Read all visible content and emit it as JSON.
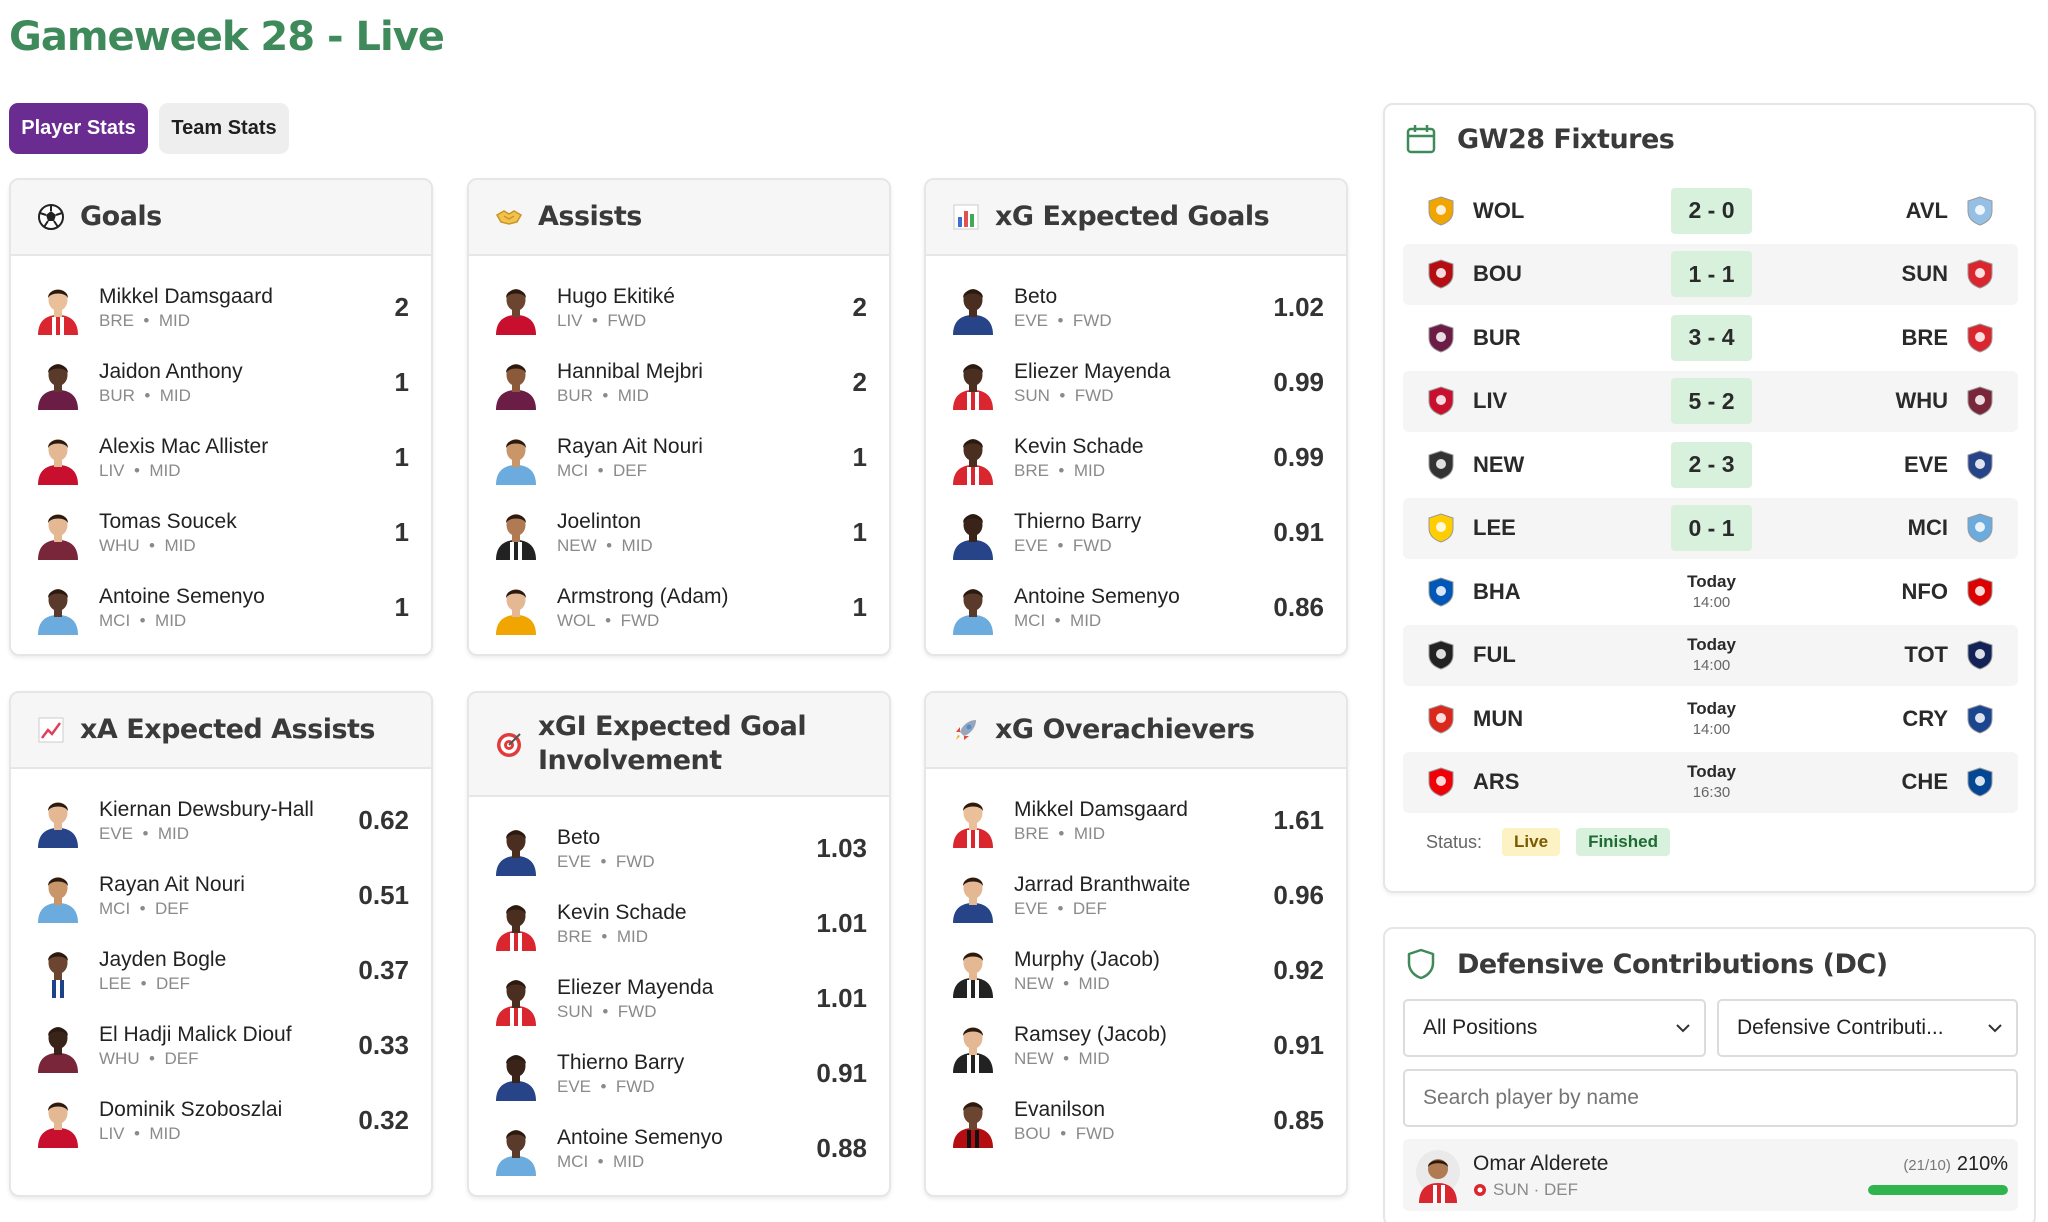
{
  "page": {
    "title": "Gameweek 28 - Live"
  },
  "tabs": [
    {
      "label": "Player Stats",
      "active": true
    },
    {
      "label": "Team Stats",
      "active": false
    }
  ],
  "cards": [
    {
      "title": "Goals",
      "icon": "soccer-ball-icon",
      "rows": [
        {
          "name": "Mikkel Damsgaard",
          "team": "BRE",
          "pos": "MID",
          "value": "2",
          "kit": "#d9262f",
          "kit2": "#ffffff",
          "skin": "#e9c09a"
        },
        {
          "name": "Jaidon Anthony",
          "team": "BUR",
          "pos": "MID",
          "value": "1",
          "kit": "#6c1d45",
          "kit2": "#6c1d45",
          "skin": "#5a3a2a"
        },
        {
          "name": "Alexis Mac Allister",
          "team": "LIV",
          "pos": "MID",
          "value": "1",
          "kit": "#c8102e",
          "kit2": "#c8102e",
          "skin": "#e5b894"
        },
        {
          "name": "Tomas Soucek",
          "team": "WHU",
          "pos": "MID",
          "value": "1",
          "kit": "#7a263a",
          "kit2": "#7a263a",
          "skin": "#e5b894"
        },
        {
          "name": "Antoine Semenyo",
          "team": "MCI",
          "pos": "MID",
          "value": "1",
          "kit": "#6cabdd",
          "kit2": "#6cabdd",
          "skin": "#5a3a2a"
        }
      ]
    },
    {
      "title": "Assists",
      "icon": "handshake-icon",
      "rows": [
        {
          "name": "Hugo Ekitiké",
          "team": "LIV",
          "pos": "FWD",
          "value": "2",
          "kit": "#c8102e",
          "kit2": "#c8102e",
          "skin": "#6b4530"
        },
        {
          "name": "Hannibal Mejbri",
          "team": "BUR",
          "pos": "MID",
          "value": "2",
          "kit": "#6c1d45",
          "kit2": "#6c1d45",
          "skin": "#8a5a3a"
        },
        {
          "name": "Rayan Ait Nouri",
          "team": "MCI",
          "pos": "DEF",
          "value": "1",
          "kit": "#6cabdd",
          "kit2": "#6cabdd",
          "skin": "#c9966a"
        },
        {
          "name": "Joelinton",
          "team": "NEW",
          "pos": "MID",
          "value": "1",
          "kit": "#222222",
          "kit2": "#ffffff",
          "skin": "#b07a52"
        },
        {
          "name": "Armstrong (Adam)",
          "team": "WOL",
          "pos": "FWD",
          "value": "1",
          "kit": "#f0a500",
          "kit2": "#f0a500",
          "skin": "#e5b894"
        }
      ]
    },
    {
      "title": "xG Expected Goals",
      "icon": "bar-chart-icon",
      "rows": [
        {
          "name": "Beto",
          "team": "EVE",
          "pos": "FWD",
          "value": "1.02",
          "kit": "#274488",
          "kit2": "#274488",
          "skin": "#4a2e20"
        },
        {
          "name": "Eliezer Mayenda",
          "team": "SUN",
          "pos": "FWD",
          "value": "0.99",
          "kit": "#d9262f",
          "kit2": "#ffffff",
          "skin": "#4a2e20"
        },
        {
          "name": "Kevin Schade",
          "team": "BRE",
          "pos": "MID",
          "value": "0.99",
          "kit": "#d9262f",
          "kit2": "#ffffff",
          "skin": "#4a2e20"
        },
        {
          "name": "Thierno Barry",
          "team": "EVE",
          "pos": "FWD",
          "value": "0.91",
          "kit": "#274488",
          "kit2": "#274488",
          "skin": "#3a241a"
        },
        {
          "name": "Antoine Semenyo",
          "team": "MCI",
          "pos": "MID",
          "value": "0.86",
          "kit": "#6cabdd",
          "kit2": "#6cabdd",
          "skin": "#5a3a2a"
        }
      ]
    },
    {
      "title": "xA Expected Assists",
      "icon": "trend-up-icon",
      "rows": [
        {
          "name": "Kiernan Dewsbury-Hall",
          "team": "EVE",
          "pos": "MID",
          "value": "0.62",
          "kit": "#274488",
          "kit2": "#274488",
          "skin": "#e5b894"
        },
        {
          "name": "Rayan Ait Nouri",
          "team": "MCI",
          "pos": "DEF",
          "value": "0.51",
          "kit": "#6cabdd",
          "kit2": "#6cabdd",
          "skin": "#c9966a"
        },
        {
          "name": "Jayden Bogle",
          "team": "LEE",
          "pos": "DEF",
          "value": "0.37",
          "kit": "#ffffff",
          "kit2": "#1d428a",
          "skin": "#6b4530"
        },
        {
          "name": "El Hadji Malick Diouf",
          "team": "WHU",
          "pos": "DEF",
          "value": "0.33",
          "kit": "#7a263a",
          "kit2": "#7a263a",
          "skin": "#3a241a"
        },
        {
          "name": "Dominik Szoboszlai",
          "team": "LIV",
          "pos": "MID",
          "value": "0.32",
          "kit": "#c8102e",
          "kit2": "#c8102e",
          "skin": "#e5b894"
        }
      ]
    },
    {
      "title": "xGI Expected Goal Involvement",
      "icon": "target-icon",
      "rows": [
        {
          "name": "Beto",
          "team": "EVE",
          "pos": "FWD",
          "value": "1.03",
          "kit": "#274488",
          "kit2": "#274488",
          "skin": "#4a2e20"
        },
        {
          "name": "Kevin Schade",
          "team": "BRE",
          "pos": "MID",
          "value": "1.01",
          "kit": "#d9262f",
          "kit2": "#ffffff",
          "skin": "#4a2e20"
        },
        {
          "name": "Eliezer Mayenda",
          "team": "SUN",
          "pos": "FWD",
          "value": "1.01",
          "kit": "#d9262f",
          "kit2": "#ffffff",
          "skin": "#4a2e20"
        },
        {
          "name": "Thierno Barry",
          "team": "EVE",
          "pos": "FWD",
          "value": "0.91",
          "kit": "#274488",
          "kit2": "#274488",
          "skin": "#3a241a"
        },
        {
          "name": "Antoine Semenyo",
          "team": "MCI",
          "pos": "MID",
          "value": "0.88",
          "kit": "#6cabdd",
          "kit2": "#6cabdd",
          "skin": "#5a3a2a"
        }
      ]
    },
    {
      "title": "xG Overachievers",
      "icon": "rocket-icon",
      "rows": [
        {
          "name": "Mikkel Damsgaard",
          "team": "BRE",
          "pos": "MID",
          "value": "1.61",
          "kit": "#d9262f",
          "kit2": "#ffffff",
          "skin": "#e9c09a"
        },
        {
          "name": "Jarrad Branthwaite",
          "team": "EVE",
          "pos": "DEF",
          "value": "0.96",
          "kit": "#274488",
          "kit2": "#274488",
          "skin": "#e5b894"
        },
        {
          "name": "Murphy (Jacob)",
          "team": "NEW",
          "pos": "MID",
          "value": "0.92",
          "kit": "#222222",
          "kit2": "#ffffff",
          "skin": "#e5b894"
        },
        {
          "name": "Ramsey (Jacob)",
          "team": "NEW",
          "pos": "MID",
          "value": "0.91",
          "kit": "#222222",
          "kit2": "#ffffff",
          "skin": "#e5b894"
        },
        {
          "name": "Evanilson",
          "team": "BOU",
          "pos": "FWD",
          "value": "0.85",
          "kit": "#b50e12",
          "kit2": "#111111",
          "skin": "#6b4530"
        }
      ]
    }
  ],
  "fixtures": {
    "title": "GW28 Fixtures",
    "rows": [
      {
        "home": "WOL",
        "away": "AVL",
        "score": "2 - 0",
        "home_color": "#f0a500",
        "away_color": "#95bfe5"
      },
      {
        "home": "BOU",
        "away": "SUN",
        "score": "1 - 1",
        "home_color": "#b50e12",
        "away_color": "#d9262f"
      },
      {
        "home": "BUR",
        "away": "BRE",
        "score": "3 - 4",
        "home_color": "#6c1d45",
        "away_color": "#d9262f"
      },
      {
        "home": "LIV",
        "away": "WHU",
        "score": "5 - 2",
        "home_color": "#c8102e",
        "away_color": "#7a263a"
      },
      {
        "home": "NEW",
        "away": "EVE",
        "score": "2 - 3",
        "home_color": "#333333",
        "away_color": "#274488"
      },
      {
        "home": "LEE",
        "away": "MCI",
        "score": "0 - 1",
        "home_color": "#ffcd00",
        "away_color": "#6cabdd"
      },
      {
        "home": "BHA",
        "away": "NFO",
        "day": "Today",
        "time": "14:00",
        "home_color": "#0057b8",
        "away_color": "#dd0000"
      },
      {
        "home": "FUL",
        "away": "TOT",
        "day": "Today",
        "time": "14:00",
        "home_color": "#222222",
        "away_color": "#132257"
      },
      {
        "home": "MUN",
        "away": "CRY",
        "day": "Today",
        "time": "14:00",
        "home_color": "#da291c",
        "away_color": "#1b458f"
      },
      {
        "home": "ARS",
        "away": "CHE",
        "day": "Today",
        "time": "16:30",
        "home_color": "#ef0107",
        "away_color": "#034694"
      }
    ],
    "status_label": "Status:",
    "legend_live": "Live",
    "legend_finished": "Finished"
  },
  "defensive": {
    "title": "Defensive Contributions (DC)",
    "position_select": "All Positions",
    "metric_select": "Defensive Contributi...",
    "search_placeholder": "Search player by name",
    "rows": [
      {
        "name": "Omar Alderete",
        "meta": "SUN · DEF",
        "fraction": "(21/10)",
        "percent": "210%",
        "progress": 1.0
      }
    ]
  },
  "colors": {
    "accent_purple": "#6a2c91",
    "title_green": "#3f8a5b",
    "score_green": "#d7f1dc",
    "progress_green": "#2fb44e"
  }
}
